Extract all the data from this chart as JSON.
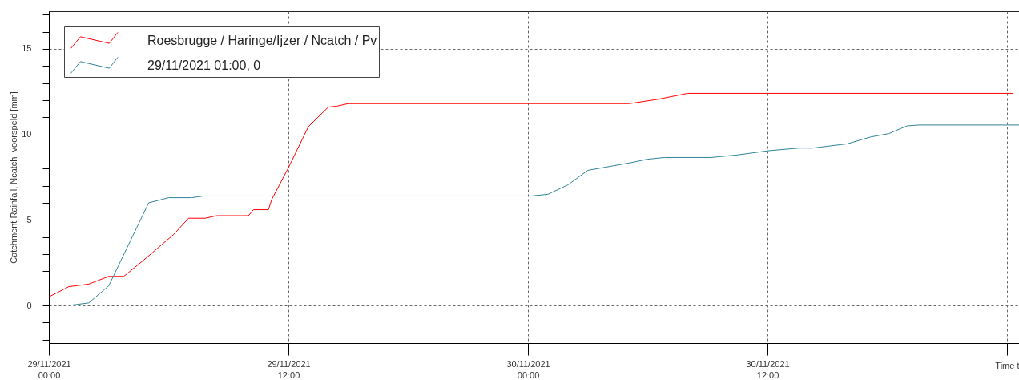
{
  "chart_data": {
    "type": "line",
    "ylabel": "Catchment Rainfall, Ncatch_voorspeld [mm]",
    "xlabel": "Time t",
    "xlim": [
      "2021-11-29T00:00",
      "2021-12-01T00:36"
    ],
    "xticks": [
      {
        "value": "2021-11-29T00:00",
        "label": "29/11/2021 00:00"
      },
      {
        "value": "2021-11-29T12:00",
        "label": "29/11/2021 12:00"
      },
      {
        "value": "2021-11-30T00:00",
        "label": "30/11/2021 00:00"
      },
      {
        "value": "2021-11-30T12:00",
        "label": "30/11/2021 12:00"
      },
      {
        "value": "2021-12-01T00:00",
        "label": null
      }
    ],
    "ylim": [
      -2.2,
      17.2
    ],
    "yticks": [
      {
        "value": -2,
        "label": null
      },
      {
        "value": -1,
        "label": null
      },
      0,
      {
        "value": 1,
        "label": null
      },
      {
        "value": 2,
        "label": null
      },
      {
        "value": 3,
        "label": null
      },
      {
        "value": 4,
        "label": null
      },
      5,
      {
        "value": 6,
        "label": null
      },
      {
        "value": 7,
        "label": null
      },
      {
        "value": 8,
        "label": null
      },
      {
        "value": 9,
        "label": null
      },
      10,
      {
        "value": 11,
        "label": null
      },
      {
        "value": 12,
        "label": null
      },
      {
        "value": 13,
        "label": null
      },
      {
        "value": 14,
        "label": null
      },
      15,
      {
        "value": 16,
        "label": null
      },
      {
        "value": 17,
        "label": null
      }
    ],
    "grid": true,
    "legend": "top left",
    "series": [
      {
        "name": "Roesbrugge / Haringe/Ijzer / Ncatch / Pv",
        "color": "#ff0000",
        "x": [
          "2021-11-29T00:00",
          "2021-11-29T01:00",
          "2021-11-29T02:00",
          "2021-11-29T03:00",
          "2021-11-29T03:45",
          "2021-11-29T04:45",
          "2021-11-29T06:15",
          "2021-11-29T07:00",
          "2021-11-29T07:50",
          "2021-11-29T08:25",
          "2021-11-29T10:00",
          "2021-11-29T10:15",
          "2021-11-29T11:00",
          "2021-11-29T11:10",
          "2021-11-29T12:00",
          "2021-11-29T13:00",
          "2021-11-29T14:00",
          "2021-11-29T14:25",
          "2021-11-29T15:00",
          "2021-11-30T05:05",
          "2021-11-30T06:30",
          "2021-11-30T08:00",
          "2021-12-01T00:18"
        ],
        "values": [
          0.5,
          1.1,
          1.25,
          1.7,
          1.7,
          2.65,
          4.15,
          5.1,
          5.1,
          5.25,
          5.25,
          5.6,
          5.6,
          6.2,
          8.05,
          10.45,
          11.6,
          11.65,
          11.8,
          11.8,
          12.05,
          12.4,
          12.4
        ]
      },
      {
        "name": "29/11/2021 01:00, 0",
        "color": "#31849b",
        "x": [
          "2021-11-29T01:00",
          "2021-11-29T02:00",
          "2021-11-29T03:00",
          "2021-11-29T05:00",
          "2021-11-29T06:00",
          "2021-11-29T07:10",
          "2021-11-29T07:45",
          "2021-11-30T00:10",
          "2021-11-30T01:00",
          "2021-11-30T02:00",
          "2021-11-30T03:00",
          "2021-11-30T05:10",
          "2021-11-30T06:00",
          "2021-11-30T06:50",
          "2021-11-30T09:10",
          "2021-11-30T10:30",
          "2021-11-30T12:05",
          "2021-11-30T13:35",
          "2021-11-30T14:15",
          "2021-11-30T16:00",
          "2021-11-30T17:10",
          "2021-11-30T18:05",
          "2021-11-30T19:00",
          "2021-11-30T19:35",
          "2021-12-01T00:36"
        ],
        "values": [
          0,
          0.15,
          1.15,
          6.0,
          6.3,
          6.3,
          6.4,
          6.4,
          6.5,
          7.05,
          7.9,
          8.35,
          8.55,
          8.65,
          8.65,
          8.8,
          9.05,
          9.2,
          9.2,
          9.45,
          9.85,
          10.05,
          10.5,
          10.55,
          10.55
        ]
      }
    ]
  }
}
